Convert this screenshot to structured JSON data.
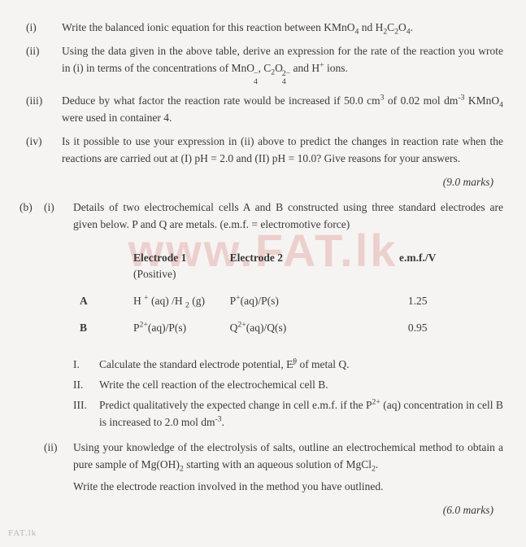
{
  "watermark": "www.FAT.lk",
  "footer": "FAT.lk",
  "part_a": {
    "items": [
      {
        "label": "(i)",
        "text_html": "Write the balanced ionic equation for this reaction between  KMnO<sub>4</sub> nd H<sub>2</sub>C<sub>2</sub>O<sub>4</sub>."
      },
      {
        "label": "(ii)",
        "text_html": "Using the data given in   the above table, derive an expression for the rate of the reaction you wrote in (i) in terms of the concentrations of  MnO<span class='supsub'><span>&#8722;</span><span>4</span></span>, C<sub>2</sub>O<span class='supsub'><span>2&#8722;</span><span>4</span></span>  and H<sup>+</sup> ions."
      },
      {
        "label": "(iii)",
        "text_html": "Deduce by what factor the reaction rate would be increased if 50.0 cm<sup>3</sup> of 0.02 mol dm<sup>-3</sup> KMnO<sub>4</sub> were used in container 4."
      },
      {
        "label": "(iv)",
        "text_html": "Is it  possible to use your expression in (ii) above to predict the changes in reaction rate when the reactions are carried out at (I) pH = 2.0 and (II) pH = 10.0? Give reasons for your answers."
      }
    ],
    "marks": "(9.0 marks)"
  },
  "part_b": {
    "outer_label": "(b)",
    "i": {
      "label": "(i)",
      "intro": "Details of two electrochemical cells A and B constructed using  three standard electrodes are given below. P and Q are metals. (e.m.f. = electromotive force)",
      "table": {
        "headers": [
          "Electrode 1",
          "Electrode 2",
          "e.m.f./V"
        ],
        "positive_note": "(Positive)",
        "rows": [
          {
            "label": "A",
            "e1_html": "H <sup>+</sup> (aq) /H <sub>2</sub> (g)",
            "e2_html": "P<sup>+</sup>(aq)/P(s)",
            "emf": "1.25"
          },
          {
            "label": "B",
            "e1_html": "P<sup>2+</sup>(aq)/P(s)",
            "e2_html": "Q<sup>2+</sup>(aq)/Q(s)",
            "emf": "0.95"
          }
        ]
      },
      "romans": [
        {
          "label": "I.",
          "text_html": "Calculate the standard electrode potential, E&#x0335;<sup>&#952;</sup>  of metal Q."
        },
        {
          "label": "II.",
          "text_html": "Write the cell reaction of the electrochemical cell B."
        },
        {
          "label": "III.",
          "text_html": "Predict qualitatively the expected change in cell e.m.f. if the P<sup>2+</sup> (aq) concentration in cell B is increased to 2.0 mol dm<sup>-3</sup>."
        }
      ]
    },
    "ii": {
      "label": "(ii)",
      "text_html": "Using your knowledge of the electrolysis of salts, outline an electrochemical method to obtain a pure sample of Mg(OH)<sub>2</sub> starting with an aqueous solution of MgCl<sub>2</sub>.",
      "text2": "Write the electrode reaction involved in the method you have outlined."
    },
    "marks": "(6.0 marks)"
  }
}
